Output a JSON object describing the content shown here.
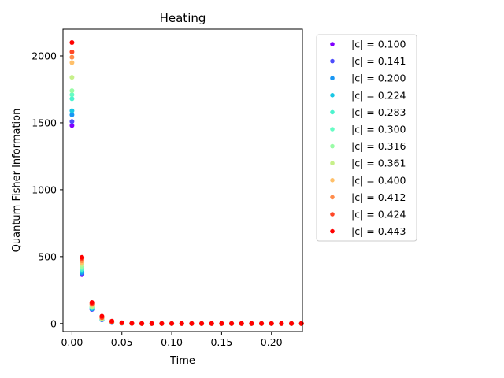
{
  "chart_data": {
    "type": "scatter",
    "title": "Heating",
    "xlabel": "Time",
    "ylabel": "Quantum Fisher Information",
    "xlim": [
      -0.009,
      0.231
    ],
    "ylim": [
      -60,
      2200
    ],
    "xticks": [
      "0.00",
      "0.05",
      "0.10",
      "0.15",
      "0.20"
    ],
    "xtick_values": [
      0.0,
      0.05,
      0.1,
      0.15,
      0.2
    ],
    "yticks": [
      "0",
      "500",
      "1000",
      "1500",
      "2000"
    ],
    "ytick_values": [
      0,
      500,
      1000,
      1500,
      2000
    ],
    "grid": false,
    "legend_placement": "outside right",
    "x": [
      0.0,
      0.01,
      0.02,
      0.03,
      0.04,
      0.05,
      0.06,
      0.07,
      0.08,
      0.09,
      0.1,
      0.11,
      0.12,
      0.13,
      0.14,
      0.15,
      0.16,
      0.17,
      0.18,
      0.19,
      0.2,
      0.21,
      0.22,
      0.23
    ],
    "series": [
      {
        "name": "|c| = 0.100",
        "color": "#8000ff",
        "values": [
          1480,
          365,
          105,
          28,
          8,
          3,
          1,
          0,
          0,
          0,
          0,
          0,
          0,
          0,
          0,
          0,
          0,
          0,
          0,
          0,
          0,
          0,
          0,
          0
        ]
      },
      {
        "name": "|c| = 0.141",
        "color": "#4d4dfc",
        "values": [
          1510,
          370,
          106,
          29,
          8,
          3,
          1,
          0,
          0,
          0,
          0,
          0,
          0,
          0,
          0,
          0,
          0,
          0,
          0,
          0,
          0,
          0,
          0,
          0
        ]
      },
      {
        "name": "|c| = 0.200",
        "color": "#1996f3",
        "values": [
          1560,
          380,
          108,
          30,
          9,
          3,
          1,
          0,
          0,
          0,
          0,
          0,
          0,
          0,
          0,
          0,
          0,
          0,
          0,
          0,
          0,
          0,
          0,
          0
        ]
      },
      {
        "name": "|c| = 0.224",
        "color": "#1ac7e4",
        "values": [
          1590,
          390,
          112,
          31,
          9,
          3,
          1,
          0,
          0,
          0,
          0,
          0,
          0,
          0,
          0,
          0,
          0,
          0,
          0,
          0,
          0,
          0,
          0,
          0
        ]
      },
      {
        "name": "|c| = 0.283",
        "color": "#4df3ce",
        "values": [
          1680,
          405,
          118,
          33,
          10,
          3,
          1,
          0,
          0,
          0,
          0,
          0,
          0,
          0,
          0,
          0,
          0,
          0,
          0,
          0,
          0,
          0,
          0,
          0
        ]
      },
      {
        "name": "|c| = 0.300",
        "color": "#66fcc4",
        "values": [
          1710,
          415,
          121,
          34,
          10,
          3,
          1,
          0,
          0,
          0,
          0,
          0,
          0,
          0,
          0,
          0,
          0,
          0,
          0,
          0,
          0,
          0,
          0,
          0
        ]
      },
      {
        "name": "|c| = 0.316",
        "color": "#99fca6",
        "values": [
          1740,
          425,
          124,
          35,
          10,
          3,
          1,
          0,
          0,
          0,
          0,
          0,
          0,
          0,
          0,
          0,
          0,
          0,
          0,
          0,
          0,
          0,
          0,
          0
        ]
      },
      {
        "name": "|c| = 0.361",
        "color": "#c7f08a",
        "values": [
          1840,
          440,
          130,
          38,
          11,
          4,
          1,
          0,
          0,
          0,
          0,
          0,
          0,
          0,
          0,
          0,
          0,
          0,
          0,
          0,
          0,
          0,
          0,
          0
        ]
      },
      {
        "name": "|c| = 0.400",
        "color": "#ffc06a",
        "values": [
          1950,
          455,
          140,
          42,
          12,
          4,
          1,
          0,
          0,
          0,
          0,
          0,
          0,
          0,
          0,
          0,
          0,
          0,
          0,
          0,
          0,
          0,
          0,
          0
        ]
      },
      {
        "name": "|c| = 0.412",
        "color": "#ff8c4c",
        "values": [
          1990,
          470,
          145,
          44,
          13,
          4,
          1,
          0,
          0,
          0,
          0,
          0,
          0,
          0,
          0,
          0,
          0,
          0,
          0,
          0,
          0,
          0,
          0,
          0
        ]
      },
      {
        "name": "|c| = 0.424",
        "color": "#ff4726",
        "values": [
          2030,
          485,
          150,
          46,
          14,
          4,
          1,
          0,
          0,
          0,
          0,
          0,
          0,
          0,
          0,
          0,
          0,
          0,
          0,
          0,
          0,
          0,
          0,
          0
        ]
      },
      {
        "name": "|c| = 0.443",
        "color": "#ff0000",
        "values": [
          2100,
          495,
          158,
          55,
          18,
          6,
          2,
          0,
          0,
          0,
          0,
          0,
          0,
          0,
          0,
          0,
          0,
          0,
          0,
          0,
          0,
          0,
          0,
          0
        ]
      }
    ]
  }
}
